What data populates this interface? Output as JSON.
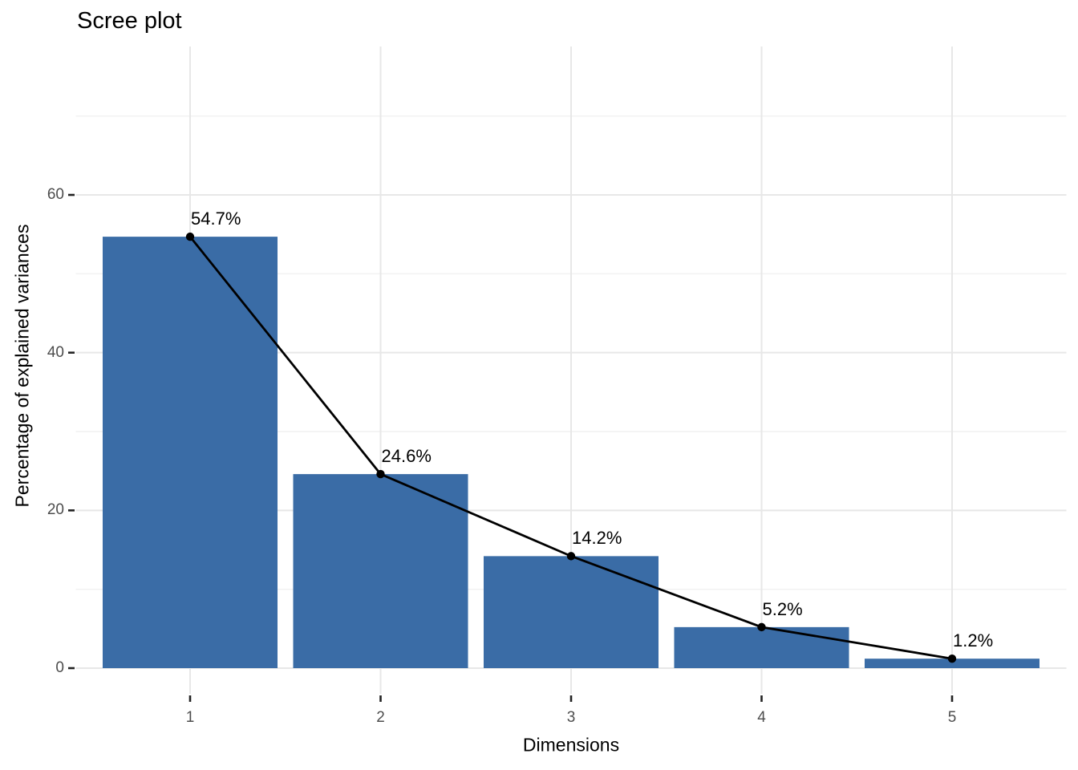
{
  "title": "Scree plot",
  "colors": {
    "bar": "#3a6ca6",
    "line": "#000000",
    "point": "#000000",
    "grid_major": "#e7e7e7",
    "grid_minor": "#f1f1f1",
    "tick_mark": "#222222",
    "axis_text": "#4d4d4d",
    "text": "#000000",
    "background": "#ffffff"
  },
  "chart_data": {
    "type": "bar",
    "title": "Scree plot",
    "categories": [
      "1",
      "2",
      "3",
      "4",
      "5"
    ],
    "values": [
      54.7,
      24.6,
      14.2,
      5.2,
      1.2
    ],
    "value_labels": [
      "54.7%",
      "24.6%",
      "14.2%",
      "5.2%",
      "1.2%"
    ],
    "overlay_line": true,
    "xlabel": "Dimensions",
    "ylabel": "Percentage of explained variances",
    "ylim": [
      -3.3,
      78.8
    ],
    "yticks": [
      0,
      20,
      40,
      60
    ],
    "yticks_minor": [
      10,
      30,
      50,
      70
    ],
    "grid": true,
    "legend": "none"
  }
}
